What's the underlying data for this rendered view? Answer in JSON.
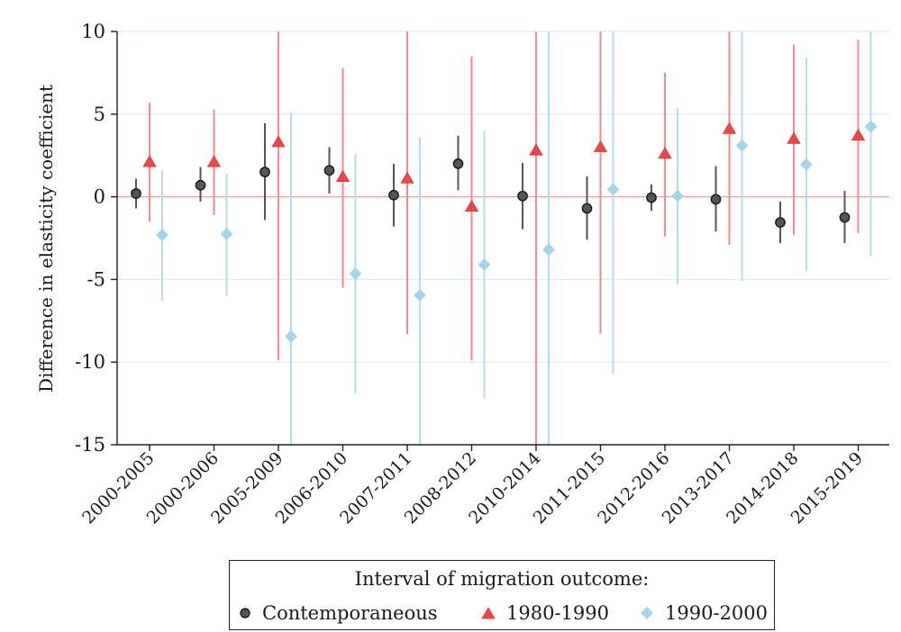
{
  "chart_data": {
    "type": "scatter",
    "ylabel": "Difference in elasticity coefficient",
    "xlabel": "",
    "ylim": [
      -15,
      10
    ],
    "yticks": [
      10,
      5,
      0,
      -5,
      -10,
      -15
    ],
    "categories": [
      "2000-2005",
      "2000-2006",
      "2005-2009",
      "2006-2010",
      "2007-2011",
      "2008-2012",
      "2010-2014",
      "2011-2015",
      "2012-2016",
      "2013-2017",
      "2014-2018",
      "2015-2019"
    ],
    "grid": true,
    "reference_line": 0,
    "legend_title": "Interval of migration outcome:",
    "legend_position": "bottom",
    "series": [
      {
        "name": "Contemporaneous",
        "marker": "circle",
        "color": "#555555",
        "ci_color": "#555555",
        "values": [
          0.2,
          0.7,
          1.5,
          1.6,
          0.1,
          2.0,
          0.05,
          -0.7,
          -0.05,
          -0.15,
          -1.55,
          -1.25
        ],
        "ci_low": [
          -0.7,
          -0.3,
          -1.4,
          0.2,
          -1.8,
          0.4,
          -1.95,
          -2.6,
          -0.85,
          -2.1,
          -2.8,
          -2.8
        ],
        "ci_high": [
          1.1,
          1.8,
          4.45,
          3.0,
          2.0,
          3.7,
          2.05,
          1.25,
          0.75,
          1.85,
          -0.3,
          0.35
        ]
      },
      {
        "name": "1980-1990",
        "marker": "triangle",
        "color": "#e8474b",
        "ci_color": "#f08c8f",
        "values": [
          2.1,
          2.1,
          3.3,
          1.2,
          1.1,
          -0.6,
          2.8,
          3.0,
          2.6,
          4.1,
          3.5,
          3.7
        ],
        "ci_low": [
          -1.5,
          -1.1,
          -9.9,
          -5.5,
          -8.3,
          -9.9,
          -15,
          -8.3,
          -2.4,
          -2.9,
          -2.3,
          -2.2
        ],
        "ci_high": [
          5.7,
          5.3,
          10,
          7.8,
          10,
          8.5,
          10,
          10,
          7.5,
          10,
          9.2,
          9.5
        ]
      },
      {
        "name": "1990-2000",
        "marker": "diamond",
        "color": "#a6d5e8",
        "ci_color": "#b4dcea",
        "values": [
          -2.3,
          -2.25,
          -8.45,
          -4.65,
          -5.95,
          -4.1,
          -3.2,
          0.45,
          0.05,
          3.1,
          1.95,
          4.25
        ],
        "ci_low": [
          -6.3,
          -6.0,
          -15,
          -11.9,
          -15,
          -12.2,
          -15,
          -10.7,
          -5.3,
          -5.1,
          -4.5,
          -3.6
        ],
        "ci_high": [
          1.6,
          1.4,
          5.1,
          2.6,
          3.6,
          4.0,
          10,
          10,
          5.4,
          10,
          8.4,
          10
        ]
      }
    ]
  }
}
